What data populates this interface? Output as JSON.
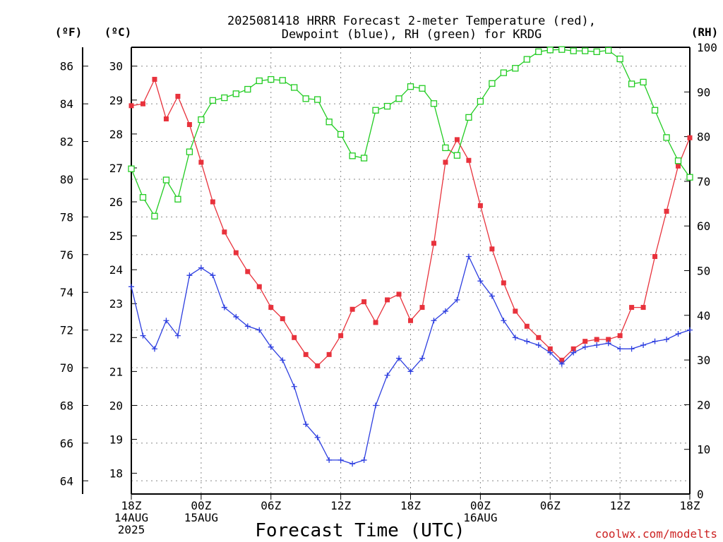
{
  "chart_data": {
    "type": "line",
    "title_line1": "2025081418 HRRR Forecast 2-meter Temperature (red),",
    "title_line2": "Dewpoint (blue), RH (green) for KRDG",
    "xlabel": "Forecast Time (UTC)",
    "watermark": "coolwx.com/modelts",
    "axis_unit_f": "(ºF)",
    "axis_unit_c": "(ºC)",
    "axis_unit_rh": "(RH)",
    "x_hours": [
      0,
      1,
      2,
      3,
      4,
      5,
      6,
      7,
      8,
      9,
      10,
      11,
      12,
      13,
      14,
      15,
      16,
      17,
      18,
      19,
      20,
      21,
      22,
      23,
      24,
      25,
      26,
      27,
      28,
      29,
      30,
      31,
      32,
      33,
      34,
      35,
      36,
      37,
      38,
      39,
      40,
      41,
      42,
      43,
      44,
      45,
      46,
      47,
      48
    ],
    "x_range": [
      0,
      48
    ],
    "x_ticks": [
      {
        "hour": 0,
        "lines": [
          "18Z",
          "14AUG",
          "2025"
        ]
      },
      {
        "hour": 6,
        "lines": [
          "00Z",
          "15AUG"
        ]
      },
      {
        "hour": 12,
        "lines": [
          "06Z"
        ]
      },
      {
        "hour": 18,
        "lines": [
          "12Z"
        ]
      },
      {
        "hour": 24,
        "lines": [
          "18Z"
        ]
      },
      {
        "hour": 30,
        "lines": [
          "00Z",
          "16AUG"
        ]
      },
      {
        "hour": 36,
        "lines": [
          "06Z"
        ]
      },
      {
        "hour": 42,
        "lines": [
          "12Z"
        ]
      },
      {
        "hour": 48,
        "lines": [
          "18Z"
        ]
      }
    ],
    "y_range_f": [
      63.3,
      87.0
    ],
    "y_ticks_f": [
      "64",
      "66",
      "68",
      "70",
      "72",
      "74",
      "76",
      "78",
      "80",
      "82",
      "84",
      "86"
    ],
    "y_ticks_c": [
      "18",
      "19",
      "20",
      "21",
      "22",
      "23",
      "24",
      "25",
      "26",
      "27",
      "28",
      "29",
      "30"
    ],
    "y_ticks_rh": [
      "0",
      "10",
      "20",
      "30",
      "40",
      "50",
      "60",
      "70",
      "80",
      "90",
      "100"
    ],
    "grid": true,
    "series": [
      {
        "name": "Temperature (red)",
        "unit": "F",
        "color": "#e8323c",
        "marker": "filled-square",
        "values": [
          83.9,
          84.0,
          85.3,
          83.2,
          84.4,
          82.9,
          80.9,
          78.8,
          77.2,
          76.1,
          75.1,
          74.3,
          73.2,
          72.6,
          71.6,
          70.7,
          70.1,
          70.7,
          71.7,
          73.1,
          73.5,
          72.4,
          73.6,
          73.9,
          72.5,
          73.2,
          76.6,
          80.9,
          82.1,
          81.0,
          78.6,
          76.3,
          74.5,
          73.0,
          72.2,
          71.6,
          71.0,
          70.4,
          71.0,
          71.4,
          71.5,
          71.5,
          71.7,
          73.2,
          73.2,
          75.9,
          78.3,
          80.7,
          82.2
        ]
      },
      {
        "name": "Dewpoint (blue)",
        "unit": "F",
        "color": "#2d3ee0",
        "marker": "plus",
        "values": [
          74.3,
          71.7,
          71.0,
          72.5,
          71.7,
          74.9,
          75.3,
          74.9,
          73.2,
          72.7,
          72.2,
          72.0,
          71.1,
          70.4,
          69.0,
          67.0,
          66.3,
          65.1,
          65.1,
          64.9,
          65.1,
          68.0,
          69.6,
          70.5,
          69.8,
          70.5,
          72.5,
          73.0,
          73.6,
          75.9,
          74.6,
          73.8,
          72.5,
          71.6,
          71.4,
          71.2,
          70.8,
          70.2,
          70.8,
          71.1,
          71.2,
          71.3,
          71.0,
          71.0,
          71.2,
          71.4,
          71.5,
          71.8,
          72.0
        ]
      },
      {
        "name": "RH (green)",
        "unit": "%",
        "color": "#22cc22",
        "marker": "open-square",
        "values": [
          72.8,
          66.4,
          62.2,
          70.3,
          66.0,
          76.6,
          83.8,
          88.1,
          88.7,
          89.6,
          90.6,
          92.5,
          92.8,
          92.6,
          91.0,
          88.5,
          88.3,
          83.3,
          80.5,
          75.7,
          75.2,
          85.9,
          86.8,
          88.5,
          91.2,
          90.8,
          87.4,
          77.5,
          75.8,
          84.3,
          87.9,
          91.9,
          94.3,
          95.3,
          97.3,
          99.0,
          99.4,
          99.5,
          99.2,
          99.2,
          99.0,
          99.3,
          97.4,
          91.8,
          92.2,
          85.9,
          79.8,
          74.6,
          70.9
        ]
      }
    ]
  }
}
